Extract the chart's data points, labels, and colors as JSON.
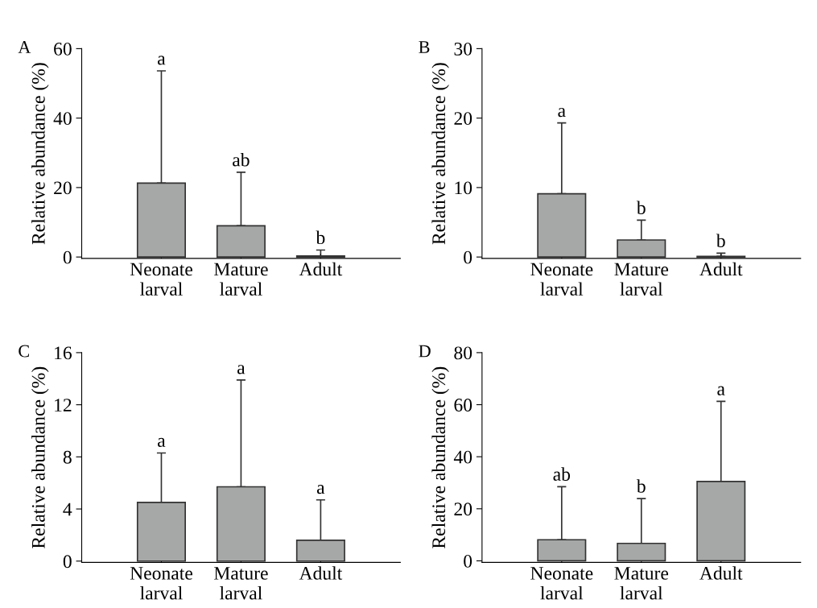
{
  "chart_data": [
    {
      "type": "bar",
      "title": "A",
      "ylabel": "Relative abundance (%)",
      "categories": [
        "Neonate\nlarval",
        "Mature\nlarval",
        "Adult"
      ],
      "values": [
        21.3,
        9.0,
        0.3
      ],
      "errors": [
        [
          21.3,
          53.6
        ],
        [
          9.0,
          24.4
        ],
        [
          0.3,
          2.0
        ]
      ],
      "color": "#a6a8a7",
      "ylim": [
        -0.4,
        60
      ],
      "yticks": [
        0,
        20,
        40,
        60
      ],
      "grid": false,
      "legend": false,
      "annotations": [
        {
          "text": "a",
          "x": "Neonate\nlarval",
          "y": 53.6
        },
        {
          "text": "ab",
          "x": "Mature\nlarval",
          "y": 24.4
        },
        {
          "text": "b",
          "x": "Adult",
          "y": 2.0
        }
      ]
    },
    {
      "type": "bar",
      "title": "B",
      "ylabel": "Relative abundance (%)",
      "categories": [
        "Neonate\nlarval",
        "Mature\nlarval",
        "Adult"
      ],
      "values": [
        9.1,
        2.45,
        0.1
      ],
      "errors": [
        [
          9.1,
          19.3
        ],
        [
          2.45,
          5.3
        ],
        [
          0.1,
          0.55
        ]
      ],
      "color": "#a6a8a7",
      "ylim": [
        -0.2,
        30
      ],
      "yticks": [
        0,
        10,
        20,
        30
      ],
      "grid": false,
      "legend": false,
      "annotations": [
        {
          "text": "a",
          "x": "Neonate\nlarval",
          "y": 19.3
        },
        {
          "text": "b",
          "x": "Mature\nlarval",
          "y": 5.3
        },
        {
          "text": "b",
          "x": "Adult",
          "y": 0.55
        }
      ]
    },
    {
      "type": "bar",
      "title": "C",
      "ylabel": "Relative abundance (%)",
      "categories": [
        "Neonate\nlarval",
        "Mature\nlarval",
        "Adult"
      ],
      "values": [
        4.5,
        5.7,
        1.6
      ],
      "errors": [
        [
          4.5,
          8.3
        ],
        [
          5.7,
          13.9
        ],
        [
          1.6,
          4.7
        ]
      ],
      "color": "#a6a8a7",
      "ylim": [
        -0.1,
        16
      ],
      "yticks": [
        0,
        4,
        8,
        12,
        16
      ],
      "grid": false,
      "legend": false,
      "annotations": [
        {
          "text": "a",
          "x": "Neonate\nlarval",
          "y": 8.3
        },
        {
          "text": "a",
          "x": "Mature\nlarval",
          "y": 13.9
        },
        {
          "text": "a",
          "x": "Adult",
          "y": 4.7
        }
      ]
    },
    {
      "type": "bar",
      "title": "D",
      "ylabel": "Relative abundance (%)",
      "categories": [
        "Neonate\nlarval",
        "Mature\nlarval",
        "Adult"
      ],
      "values": [
        8.1,
        6.7,
        30.5
      ],
      "errors": [
        [
          8.1,
          28.5
        ],
        [
          6.7,
          23.9
        ],
        [
          30.5,
          61.3
        ]
      ],
      "color": "#a6a8a7",
      "ylim": [
        -0.6,
        80
      ],
      "yticks": [
        0,
        20,
        40,
        60,
        80
      ],
      "grid": false,
      "legend": false,
      "annotations": [
        {
          "text": "ab",
          "x": "Neonate\nlarval",
          "y": 28.5
        },
        {
          "text": "b",
          "x": "Mature\nlarval",
          "y": 23.9
        },
        {
          "text": "a",
          "x": "Adult",
          "y": 61.3
        }
      ]
    }
  ]
}
